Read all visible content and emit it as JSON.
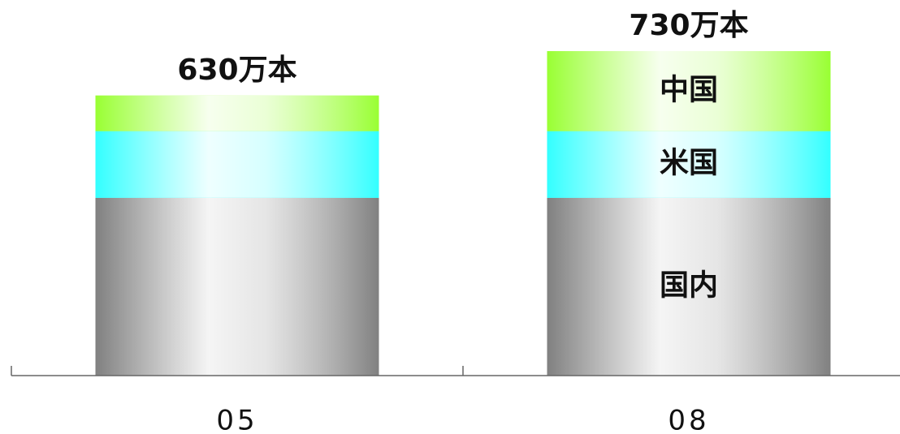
{
  "chart_data": {
    "type": "stacked_bar",
    "categories": [
      "05",
      "08"
    ],
    "series": [
      {
        "name": "国内",
        "color": "#808080",
        "values": [
          400,
          400
        ]
      },
      {
        "name": "米国",
        "color": "#33ffff",
        "values": [
          150,
          150
        ]
      },
      {
        "name": "中国",
        "color": "#99ff33",
        "values": [
          80,
          180
        ]
      }
    ],
    "totals": {
      "values": [
        630,
        730
      ],
      "value_labels": [
        "630万本",
        "730万本"
      ]
    }
  }
}
